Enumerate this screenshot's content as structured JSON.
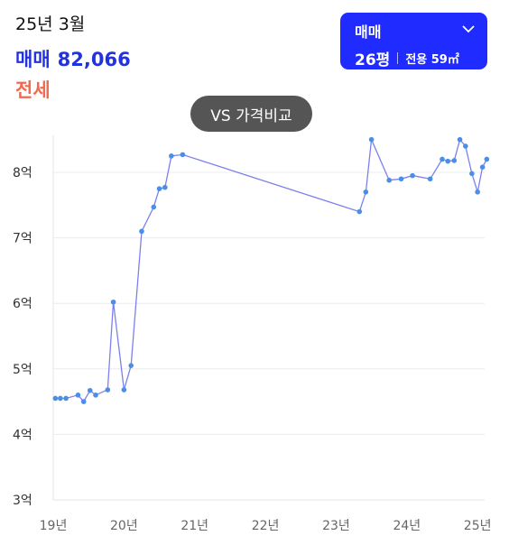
{
  "header": {
    "date": "25년 3월",
    "sale_label": "매매",
    "sale_value": "82,066",
    "jeonse_label": "전세"
  },
  "card": {
    "type": "매매",
    "size": "26평",
    "exclusive": "전용 59㎡",
    "icon": "chevron-down-icon",
    "bg_color": "#1f2bff"
  },
  "compare_button": {
    "label": "VS 가격비교"
  },
  "colors": {
    "line": "#7b80ee",
    "point": "#4a8ee8",
    "jeonse": "#f06a4f",
    "sale": "#2233dd"
  },
  "chart_data": {
    "type": "line",
    "title": "",
    "xlabel": "",
    "ylabel": "",
    "x_ticks": [
      "19년",
      "20년",
      "21년",
      "22년",
      "23년",
      "24년",
      "25년"
    ],
    "y_ticks": [
      "3억",
      "4억",
      "5억",
      "6억",
      "7억",
      "8억"
    ],
    "ylim": [
      3,
      8.7
    ],
    "xlim": [
      2019.0,
      2025.1
    ],
    "grid": true,
    "series": [
      {
        "name": "",
        "x": [
          2019.03,
          2019.1,
          2019.18,
          2019.35,
          2019.43,
          2019.52,
          2019.6,
          2019.77,
          2019.85,
          2020.0,
          2020.1,
          2020.25,
          2020.42,
          2020.5,
          2020.58,
          2020.67,
          2020.83,
          2023.33,
          2023.42,
          2023.5,
          2023.75,
          2023.92,
          2024.08,
          2024.33,
          2024.5,
          2024.58,
          2024.67,
          2024.75,
          2024.83,
          2024.92,
          2025.0,
          2025.07,
          2025.13
        ],
        "y": [
          4.55,
          4.55,
          4.55,
          4.6,
          4.5,
          4.67,
          4.6,
          4.68,
          6.02,
          4.68,
          5.05,
          7.1,
          7.47,
          7.75,
          7.77,
          8.25,
          8.27,
          7.4,
          7.7,
          8.5,
          7.88,
          7.9,
          7.95,
          7.9,
          8.2,
          8.17,
          8.18,
          8.5,
          8.4,
          7.98,
          7.7,
          8.08,
          8.2
        ]
      }
    ]
  }
}
